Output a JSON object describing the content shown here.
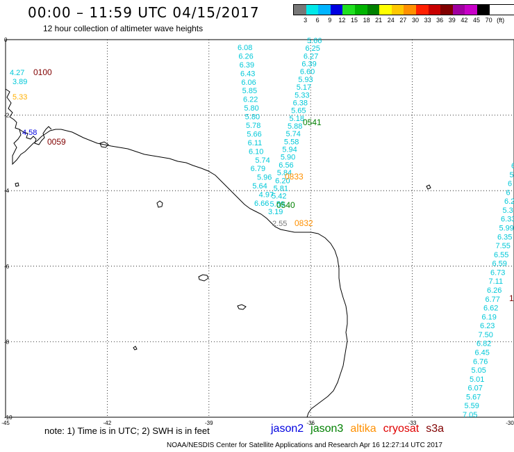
{
  "header": {
    "title": "00:00 – 11:59 UTC 04/15/2017",
    "subtitle": "12 hour collection of altimeter wave heights"
  },
  "legend": {
    "unit": "(ft)",
    "items": [
      {
        "label": "3",
        "color": "#777777"
      },
      {
        "label": "6",
        "color": "#00e8e8"
      },
      {
        "label": "9",
        "color": "#00b4ff"
      },
      {
        "label": "12",
        "color": "#0000e0"
      },
      {
        "label": "15",
        "color": "#20e020"
      },
      {
        "label": "18",
        "color": "#00b400"
      },
      {
        "label": "21",
        "color": "#008000"
      },
      {
        "label": "24",
        "color": "#ffff00"
      },
      {
        "label": "27",
        "color": "#ffc800"
      },
      {
        "label": "30",
        "color": "#ff9000"
      },
      {
        "label": "33",
        "color": "#ff2000"
      },
      {
        "label": "36",
        "color": "#c80000"
      },
      {
        "label": "39",
        "color": "#800000"
      },
      {
        "label": "42",
        "color": "#a000a0"
      },
      {
        "label": "45",
        "color": "#c800c8"
      },
      {
        "label": "70",
        "color": "#000000"
      }
    ]
  },
  "map": {
    "lon_range": [
      -45,
      -30
    ],
    "lat_range": [
      -10,
      0
    ],
    "x_ticks": [
      "-45",
      "-42",
      "-39",
      "-36",
      "-33",
      "-30"
    ],
    "y_ticks": [
      "0",
      "-2",
      "-4",
      "-6",
      "-8",
      "-10"
    ]
  },
  "tracks": {
    "track_a": {
      "values": [
        "6.08",
        "6.26",
        "6.39",
        "6.43",
        "6.06",
        "5.85",
        "6.22",
        "5.80",
        "5.80",
        "5.78",
        "5.66",
        "6.11",
        "6.10",
        "5.74",
        "6.79",
        "5.96",
        "5.64",
        "4.97",
        "6.66"
      ],
      "color": "#00c8d8"
    },
    "track_b": {
      "values": [
        "5.66",
        "6.25",
        "6.27",
        "6.39",
        "6.60",
        "5.93",
        "5.17",
        "5.33",
        "6.38",
        "5.65",
        "5.18",
        "5.88",
        "5.74",
        "5.58",
        "5.94",
        "5.90",
        "6.56",
        "5.84",
        "6.20",
        "5.81",
        "5.42",
        "5.59",
        "3.19"
      ],
      "color": "#00c8d8"
    },
    "track_c": {
      "values": [
        "6",
        "5",
        "6",
        "6",
        "6.2",
        "5.3",
        "6.33",
        "5.99",
        "6.35",
        "7.55",
        "6.55",
        "6.59",
        "6.73",
        "7.11",
        "6.26",
        "6.77",
        "6.62",
        "6.19",
        "6.23",
        "7.50",
        "6.82",
        "6.45",
        "6.76",
        "5.05",
        "5.01",
        "6.07",
        "5.67",
        "5.59",
        "7.05"
      ],
      "color": "#00c8d8"
    },
    "west": [
      {
        "value": "4.27",
        "color": "#00c8d8"
      },
      {
        "value": "3.89",
        "color": "#00c8d8"
      },
      {
        "value": "5.33",
        "color": "#ffb000"
      },
      {
        "value": "4.58",
        "color": "#0000e0"
      }
    ],
    "grey_value": {
      "value": "2.55",
      "color": "#777777"
    }
  },
  "pass_times": [
    {
      "label": "0100",
      "color": "#800000"
    },
    {
      "label": "0059",
      "color": "#800000"
    },
    {
      "label": "0541",
      "color": "#008000"
    },
    {
      "label": "0833",
      "color": "#ff9000"
    },
    {
      "label": "0540",
      "color": "#008000"
    },
    {
      "label": "0832",
      "color": "#ff9000"
    },
    {
      "label": "1",
      "color": "#800000"
    }
  ],
  "footer": {
    "note": "note: 1) Time is in UTC; 2) SWH is in feet",
    "satellites": [
      {
        "name": "jason2",
        "color": "#0000e0"
      },
      {
        "name": "jason3",
        "color": "#008000"
      },
      {
        "name": "altika",
        "color": "#ff9000"
      },
      {
        "name": "cryosat",
        "color": "#e00000"
      },
      {
        "name": "s3a",
        "color": "#800000"
      }
    ],
    "credit": "NOAA/NESDIS Center for Satellite Applications and Research    Apr 16 12:27:14 UTC 2017"
  }
}
